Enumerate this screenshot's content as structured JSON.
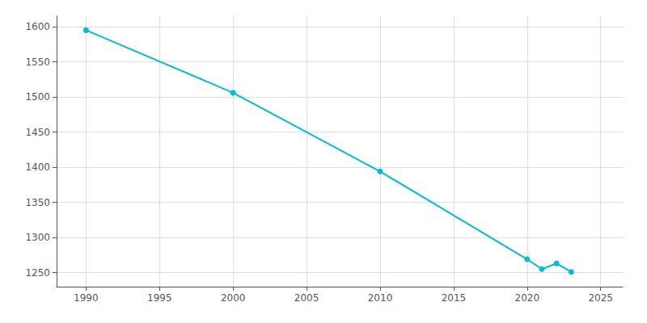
{
  "chart_data": {
    "type": "line",
    "x": [
      1990,
      2000,
      2010,
      2020,
      2021,
      2022,
      2023
    ],
    "values": [
      1595,
      1506,
      1394,
      1269,
      1255,
      1263,
      1251
    ],
    "color": "#00bcd4",
    "marker": "circle",
    "xlim": [
      1988,
      2026.5
    ],
    "xticks": [
      1990,
      1995,
      2000,
      2005,
      2010,
      2015,
      2020,
      2025
    ],
    "ylim": [
      1230,
      1615
    ],
    "yticks": [
      1250,
      1300,
      1350,
      1400,
      1450,
      1500,
      1550,
      1600
    ],
    "grid": true
  }
}
